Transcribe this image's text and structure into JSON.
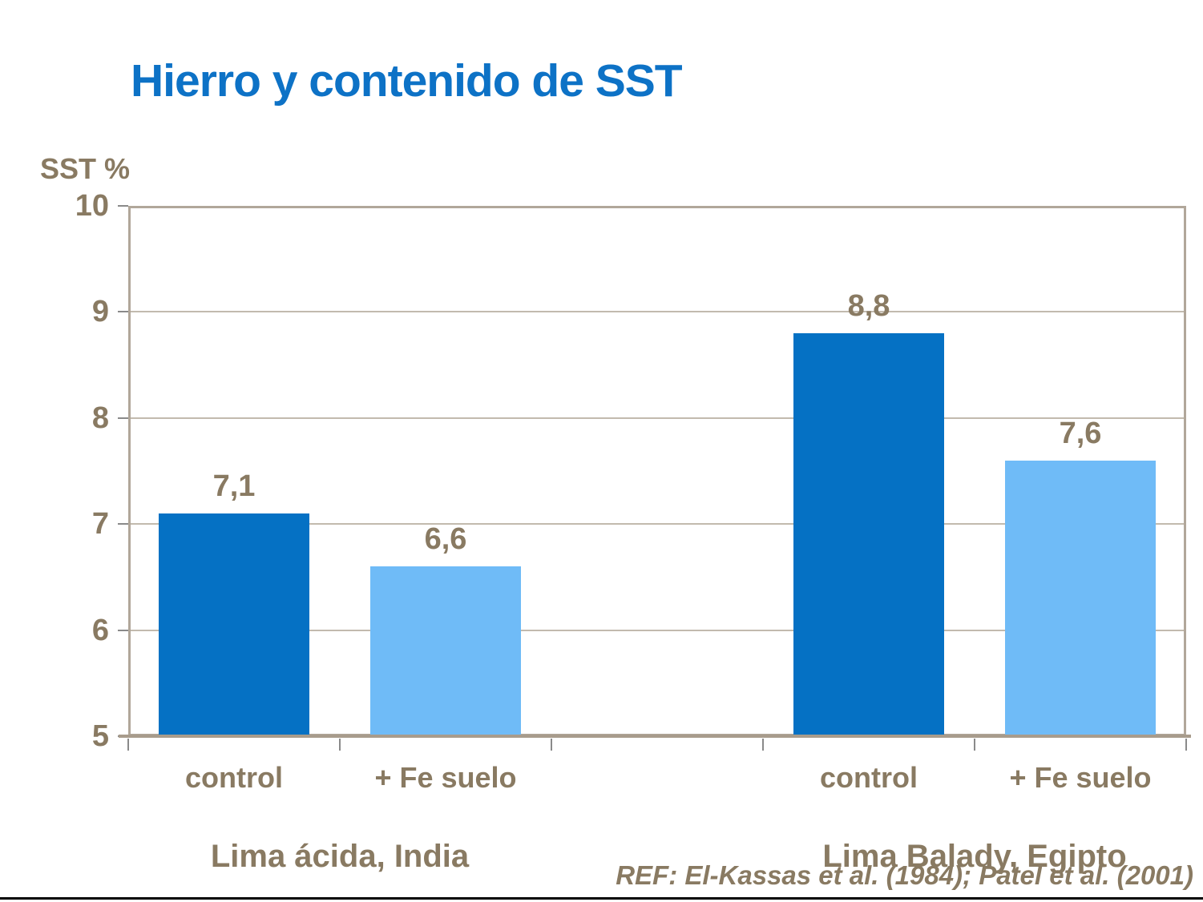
{
  "chart_data": {
    "type": "bar",
    "title": "Hierro y contenido de SST",
    "ylabel": "SST %",
    "ylim": [
      5,
      10
    ],
    "yticks": [
      5,
      6,
      7,
      8,
      9,
      10
    ],
    "grid": "horizontal",
    "legend": "none",
    "colors": {
      "dark": "#0571c4",
      "light": "#6fbbf7"
    },
    "text_color": "#897a62",
    "title_color": "#0d72c6",
    "groups": [
      {
        "label": "Lima ácida, India",
        "bars": [
          {
            "category": "control",
            "value": 7.1,
            "label": "7,1",
            "color": "dark"
          },
          {
            "category": "+ Fe suelo",
            "value": 6.6,
            "label": "6,6",
            "color": "light"
          }
        ]
      },
      {
        "label": "Lima Balady, Egipto",
        "bars": [
          {
            "category": "control",
            "value": 8.8,
            "label": "8,8",
            "color": "dark"
          },
          {
            "category": "+ Fe suelo",
            "value": 7.6,
            "label": "7,6",
            "color": "light"
          }
        ]
      }
    ],
    "reference": "REF: El-Kassas et al. (1984); Patel et al. (2001)"
  }
}
